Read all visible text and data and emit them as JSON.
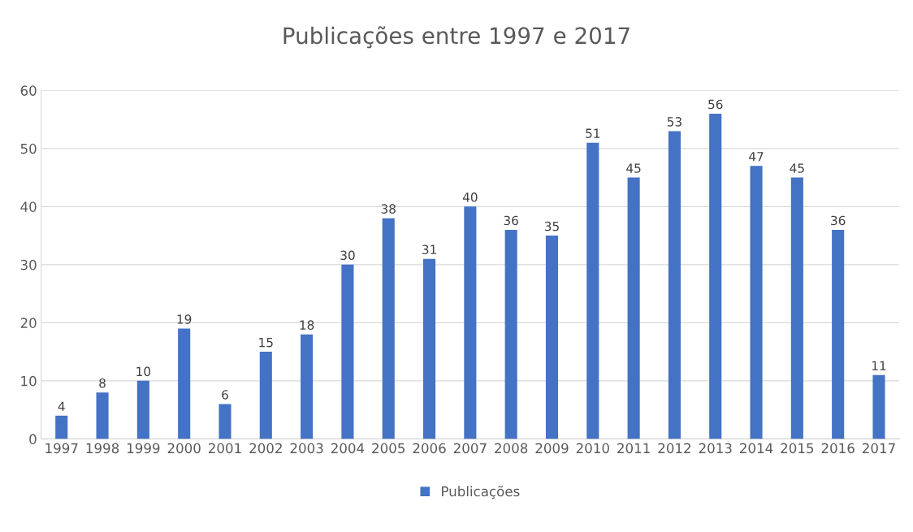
{
  "chart_data": {
    "type": "bar",
    "title": "Publicações entre 1997 e 2017",
    "categories": [
      "1997",
      "1998",
      "1999",
      "2000",
      "2001",
      "2002",
      "2003",
      "2004",
      "2005",
      "2006",
      "2007",
      "2008",
      "2009",
      "2010",
      "2011",
      "2012",
      "2013",
      "2014",
      "2015",
      "2016",
      "2017"
    ],
    "series": [
      {
        "name": "Publicações",
        "color": "#4472c4",
        "values": [
          4,
          8,
          10,
          19,
          6,
          15,
          18,
          30,
          38,
          31,
          40,
          36,
          35,
          51,
          45,
          53,
          56,
          47,
          45,
          36,
          11
        ]
      }
    ],
    "data_labels": true,
    "ylim": [
      0,
      60
    ],
    "yticks": [
      0,
      10,
      20,
      30,
      40,
      50,
      60
    ],
    "grid": "y",
    "legend": "bottom"
  }
}
